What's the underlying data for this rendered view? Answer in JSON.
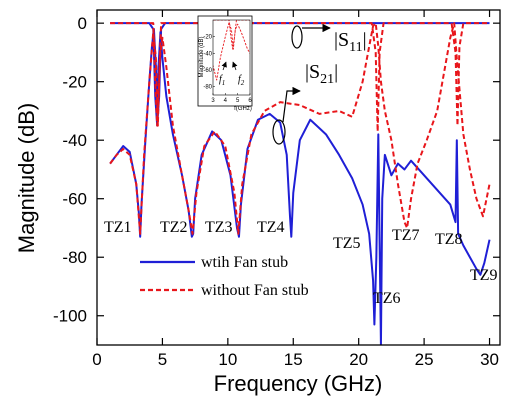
{
  "chart_data": {
    "type": "line",
    "xlabel": "Frequency (GHz)",
    "ylabel": "Magnitude (dB)",
    "xlim": [
      0,
      30.8
    ],
    "ylim": [
      -110,
      4.5
    ],
    "xticks": [
      0,
      5,
      10,
      15,
      20,
      25,
      30
    ],
    "yticks": [
      0,
      -20,
      -40,
      -60,
      -80,
      -100
    ],
    "series": [
      {
        "name": "wtih Fan stub",
        "color": "#1f1fd6",
        "dashed": false,
        "x": [
          1,
          1.5,
          2,
          2.5,
          3,
          3.2,
          3.3,
          3.4,
          3.7,
          4,
          4.2,
          4.35,
          4.5,
          4.6,
          4.7,
          4.85,
          5,
          5.3,
          5.8,
          6.5,
          7,
          7.25,
          7.35,
          7.5,
          8,
          8.8,
          9.5,
          10.2,
          10.7,
          10.85,
          11,
          11.5,
          12.3,
          13.2,
          14,
          14.5,
          14.75,
          14.85,
          15,
          15.5,
          16.3,
          17.5,
          18.5,
          19.5,
          20.3,
          20.8,
          21.1,
          21.2,
          21.35,
          21.5,
          21.6,
          21.7,
          21.8,
          22,
          22.5,
          23,
          23.5,
          24,
          25,
          26,
          27,
          27.4,
          27.5,
          27.6,
          28,
          28.5,
          29,
          29.3,
          29.6,
          30,
          null,
          1,
          4,
          4.3,
          4.45,
          4.6,
          4.75,
          4.9,
          5.2,
          30
        ],
        "values": [
          -48,
          -45,
          -42,
          -44,
          -55,
          -65,
          -73,
          -62,
          -40,
          -20,
          -8,
          -2,
          -15,
          -33,
          -15,
          -3,
          -12,
          -25,
          -38,
          -52,
          -64,
          -73,
          -72,
          -60,
          -45,
          -37,
          -40,
          -52,
          -70,
          -73,
          -62,
          -43,
          -33,
          -31,
          -34,
          -45,
          -66,
          -73,
          -58,
          -40,
          -33,
          -38,
          -45,
          -53,
          -62,
          -72,
          -88,
          -103,
          -80,
          -38,
          -75,
          -110,
          -60,
          -45,
          -52,
          -48,
          -50,
          -47,
          -52,
          -57,
          -62,
          -68,
          -40,
          -72,
          -76,
          -80,
          -84,
          -86,
          -82,
          -74,
          null,
          0,
          0,
          -2,
          -25,
          -35,
          -25,
          -2,
          0,
          0
        ]
      },
      {
        "name": "without Fan stub",
        "color": "#e8161b",
        "dashed": true,
        "x": [
          1,
          1.5,
          2,
          2.5,
          3,
          3.3,
          3.6,
          4,
          4.3,
          4.5,
          4.65,
          4.8,
          5,
          5.3,
          5.8,
          6.5,
          7,
          7.3,
          7.6,
          8.2,
          9,
          9.8,
          10.5,
          10.8,
          11.1,
          11.8,
          12.8,
          14,
          15.5,
          17,
          18.5,
          19.5,
          20.3,
          20.8,
          21.1,
          21.3,
          21.5,
          21.7,
          22,
          22.5,
          23,
          23.5,
          23.7,
          24,
          24.5,
          25.2,
          26,
          26.6,
          27,
          27.3,
          27.5,
          28,
          28.5,
          29,
          29.5,
          30,
          null,
          1,
          4.3,
          4.45,
          4.6,
          4.75,
          4.9,
          21,
          21.3,
          21.45,
          21.6,
          21.9,
          27.1,
          27.4,
          27.55,
          27.7,
          28,
          30
        ],
        "values": [
          -48,
          -45,
          -43,
          -45,
          -55,
          -72,
          -45,
          -20,
          -3,
          -12,
          -35,
          -12,
          -5,
          -15,
          -35,
          -52,
          -64,
          -72,
          -58,
          -42,
          -37,
          -42,
          -58,
          -72,
          -55,
          -38,
          -30,
          -27,
          -28,
          -31,
          -30,
          -32,
          -20,
          -8,
          -1,
          0,
          -8,
          -20,
          -30,
          -40,
          -55,
          -68,
          -70,
          -60,
          -48,
          -40,
          -30,
          -15,
          -5,
          0,
          -12,
          -38,
          -50,
          -60,
          -66,
          -55,
          null,
          0,
          0,
          -20,
          -35,
          -20,
          0,
          0,
          -10,
          -37,
          -10,
          0,
          0,
          -10,
          -35,
          -8,
          0,
          0
        ]
      }
    ],
    "annotations": [
      "TZ1",
      "TZ2",
      "TZ3",
      "TZ4",
      "TZ5",
      "TZ6",
      "TZ7",
      "TZ8",
      "TZ9"
    ],
    "s11_label": [
      "|S",
      "11",
      "|"
    ],
    "s21_label": [
      "|S",
      "21",
      "|"
    ],
    "inset": {
      "xlim": [
        3,
        6
      ],
      "ylim": [
        -90,
        0
      ],
      "xticks": [
        3,
        4,
        5,
        6
      ],
      "yticks": [
        -20,
        -40,
        -60,
        -80
      ],
      "xlabel": "f(GHz)",
      "ylabel": "Magnitude (dB)",
      "f1": [
        "f",
        "1"
      ],
      "f2": [
        "f",
        "2"
      ]
    }
  }
}
